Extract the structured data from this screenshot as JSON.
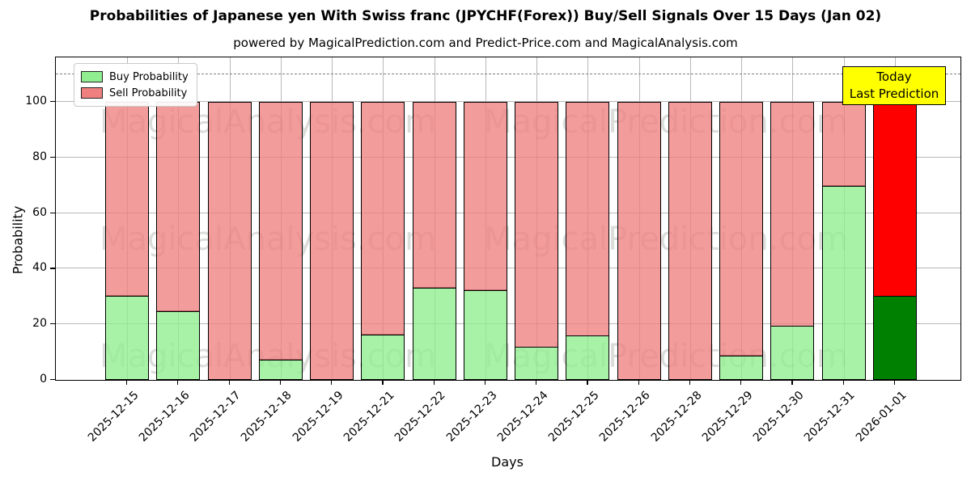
{
  "chart_data": {
    "type": "bar",
    "stacked": true,
    "title": "Probabilities of Japanese yen With Swiss franc (JPYCHF(Forex)) Buy/Sell Signals Over 15 Days (Jan 02)",
    "subtitle": "powered by MagicalPrediction.com and Predict-Price.com and MagicalAnalysis.com",
    "xlabel": "Days",
    "ylabel": "Probability",
    "categories": [
      "2025-12-15",
      "2025-12-16",
      "2025-12-17",
      "2025-12-18",
      "2025-12-19",
      "2025-12-21",
      "2025-12-22",
      "2025-12-23",
      "2025-12-24",
      "2025-12-25",
      "2025-12-26",
      "2025-12-28",
      "2025-12-29",
      "2025-12-30",
      "2025-12-31",
      "2026-01-01"
    ],
    "series": [
      {
        "name": "Buy Probability",
        "color": "#90EE90",
        "values": [
          30.5,
          25,
          0,
          7.5,
          0,
          16.5,
          33.3,
          32.5,
          12,
          16,
          0,
          0,
          9,
          19.5,
          70,
          30.5
        ]
      },
      {
        "name": "Sell Probability",
        "color": "#F08080",
        "values": [
          69.5,
          75,
          100,
          92.5,
          100,
          83.5,
          66.7,
          67.5,
          88,
          84,
          100,
          100,
          91,
          80.5,
          30,
          69.5
        ]
      }
    ],
    "today_bar": {
      "index": 15,
      "buy_color": "#008000",
      "sell_color": "#FF0000"
    },
    "annotation": {
      "lines": [
        "Today",
        "Last Prediction"
      ],
      "bg": "#FFFF00"
    },
    "yticks": [
      0,
      20,
      40,
      60,
      80,
      100
    ],
    "ylim": [
      0,
      116
    ],
    "dashed_line_y": 110,
    "grid": true,
    "legend_position": "upper left",
    "watermarks": [
      "MagicalAnalysis.com",
      "MagicalPrediction.com"
    ]
  }
}
